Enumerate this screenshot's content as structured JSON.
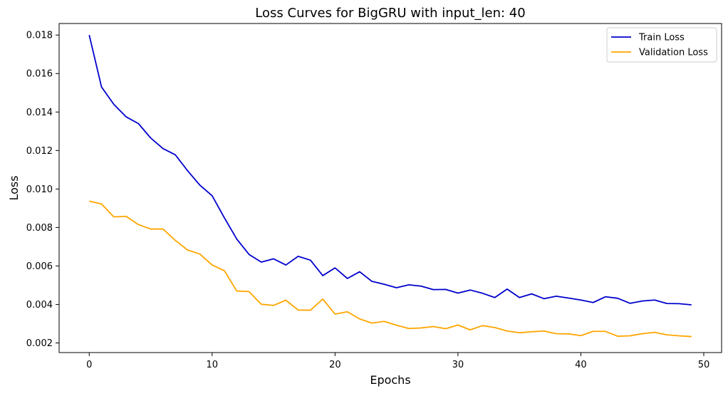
{
  "chart_data": {
    "type": "line",
    "title": "Loss Curves for BigGRU with input_len: 40",
    "xlabel": "Epochs",
    "ylabel": "Loss",
    "xlim": [
      -2.45,
      51.45
    ],
    "ylim": [
      0.0015,
      0.0186
    ],
    "xticks": [
      0,
      10,
      20,
      30,
      40,
      50
    ],
    "xtick_labels": [
      "0",
      "10",
      "20",
      "30",
      "40",
      "50"
    ],
    "yticks": [
      0.002,
      0.004,
      0.006,
      0.008,
      0.01,
      0.012,
      0.014,
      0.016,
      0.018
    ],
    "ytick_labels": [
      "0.002",
      "0.004",
      "0.006",
      "0.008",
      "0.010",
      "0.012",
      "0.014",
      "0.016",
      "0.018"
    ],
    "grid": false,
    "legend_position": "top-right",
    "x": [
      0,
      1,
      2,
      3,
      4,
      5,
      6,
      7,
      8,
      9,
      10,
      11,
      12,
      13,
      14,
      15,
      16,
      17,
      18,
      19,
      20,
      21,
      22,
      23,
      24,
      25,
      26,
      27,
      28,
      29,
      30,
      31,
      32,
      33,
      34,
      35,
      36,
      37,
      38,
      39,
      40,
      41,
      42,
      43,
      44,
      45,
      46,
      47,
      48,
      49
    ],
    "series": [
      {
        "name": "Train Loss",
        "color": "#0000cd",
        "values": [
          0.018,
          0.0153,
          0.0144,
          0.01375,
          0.0134,
          0.01265,
          0.0121,
          0.01178,
          0.01095,
          0.0102,
          0.00965,
          0.0085,
          0.0074,
          0.0066,
          0.0062,
          0.00637,
          0.00605,
          0.0065,
          0.0063,
          0.0055,
          0.0059,
          0.00535,
          0.0057,
          0.0052,
          0.00505,
          0.00487,
          0.00502,
          0.00495,
          0.00477,
          0.00478,
          0.00459,
          0.00475,
          0.00458,
          0.00436,
          0.0048,
          0.00436,
          0.00455,
          0.0043,
          0.00443,
          0.00433,
          0.00423,
          0.0041,
          0.0044,
          0.00432,
          0.00406,
          0.00418,
          0.00423,
          0.00405,
          0.00404,
          0.00398
        ]
      },
      {
        "name": "Validation Loss",
        "color": "#ffa500",
        "values": [
          0.00937,
          0.00922,
          0.00855,
          0.00858,
          0.00815,
          0.00792,
          0.00792,
          0.00733,
          0.00683,
          0.00662,
          0.00605,
          0.00575,
          0.0047,
          0.00467,
          0.00401,
          0.00395,
          0.00422,
          0.00371,
          0.0037,
          0.00428,
          0.0035,
          0.00362,
          0.00325,
          0.00303,
          0.00312,
          0.00292,
          0.00275,
          0.00278,
          0.00285,
          0.00274,
          0.00293,
          0.00268,
          0.0029,
          0.0028,
          0.00262,
          0.00253,
          0.00258,
          0.00262,
          0.00248,
          0.00247,
          0.00238,
          0.0026,
          0.0026,
          0.00235,
          0.00237,
          0.00248,
          0.00255,
          0.00242,
          0.00237,
          0.00233
        ]
      }
    ]
  }
}
